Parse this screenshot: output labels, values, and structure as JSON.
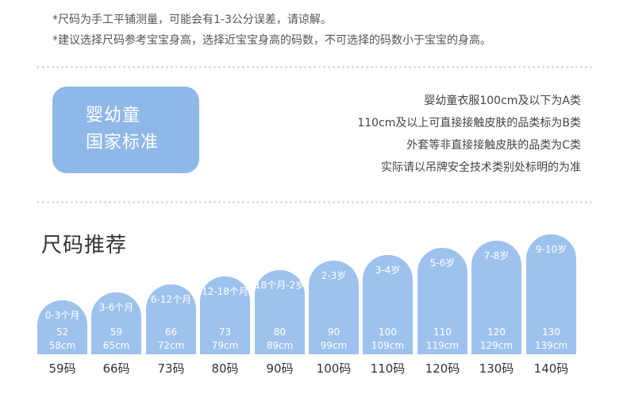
{
  "notes": [
    "*尺码为手工平铺测量，可能会有1-3公分误差，请谅解。",
    "*建议选择尺码参考宝宝身高，选择近宝宝身高的码数，不可选择的码数小于宝宝的身高。"
  ],
  "standard": {
    "badge_line1": "婴幼童",
    "badge_line2": "国家标准",
    "lines": [
      "婴幼童衣服100cm及以下为A类",
      "110cm及以上可直接接触皮肤的品类标为B类",
      "外套等非直接接触皮肤的品类为C类",
      "实际请以吊牌安全技术类别处标明的为准"
    ]
  },
  "section_title": "尺码推荐",
  "colors": {
    "bar": "#9ec2ee",
    "badge": "#8fb8e8"
  },
  "sizes": [
    {
      "age": "0-3个月",
      "h1": "52",
      "h2": "58cm",
      "size": "59码"
    },
    {
      "age": "3-6个月",
      "h1": "59",
      "h2": "65cm",
      "size": "66码"
    },
    {
      "age": "6-12个月",
      "h1": "66",
      "h2": "72cm",
      "size": "73码"
    },
    {
      "age": "12-18个月",
      "h1": "73",
      "h2": "79cm",
      "size": "80码"
    },
    {
      "age": "18个月-2岁",
      "h1": "80",
      "h2": "89cm",
      "size": "90码"
    },
    {
      "age": "2-3岁",
      "h1": "90",
      "h2": "99cm",
      "size": "100码"
    },
    {
      "age": "3-4岁",
      "h1": "100",
      "h2": "109cm",
      "size": "110码"
    },
    {
      "age": "5-6岁",
      "h1": "110",
      "h2": "119cm",
      "size": "120码"
    },
    {
      "age": "7-8岁",
      "h1": "120",
      "h2": "129cm",
      "size": "130码"
    },
    {
      "age": "9-10岁",
      "h1": "130",
      "h2": "139cm",
      "size": "140码"
    }
  ]
}
